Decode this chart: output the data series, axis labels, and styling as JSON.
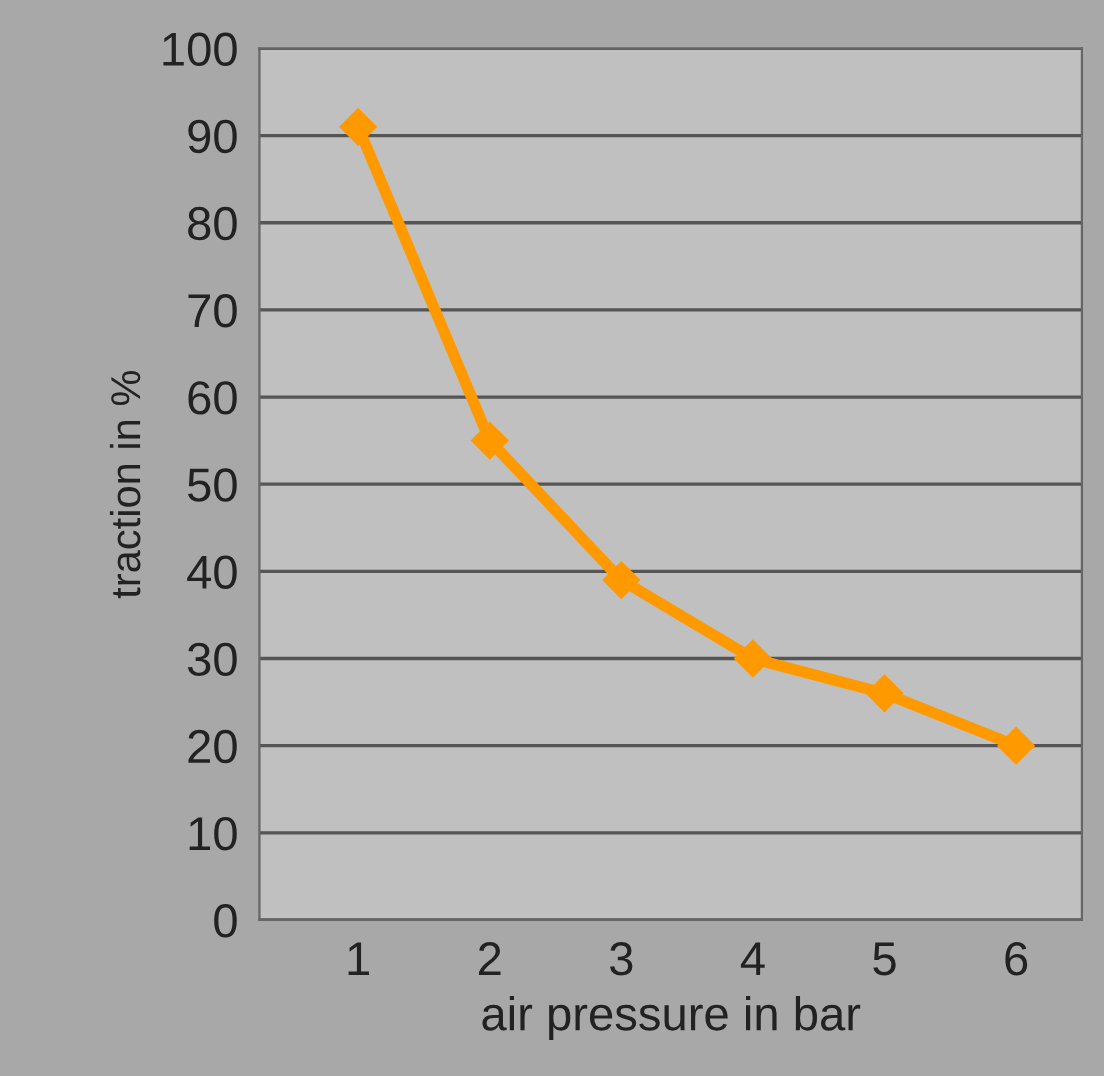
{
  "chart_data": {
    "type": "line",
    "xlabel": "air pressure in bar",
    "ylabel": "traction in %",
    "categories": [
      "1",
      "2",
      "3",
      "4",
      "5",
      "6"
    ],
    "series": [
      {
        "color": "#ff9900",
        "values": [
          91,
          55,
          39,
          30,
          26,
          20
        ]
      }
    ],
    "ylim": [
      0,
      100
    ],
    "yticks": [
      0,
      10,
      20,
      30,
      40,
      50,
      60,
      70,
      80,
      90,
      100
    ],
    "grid": "y",
    "marker": "diamond",
    "line_style": "solid",
    "legend": false
  }
}
